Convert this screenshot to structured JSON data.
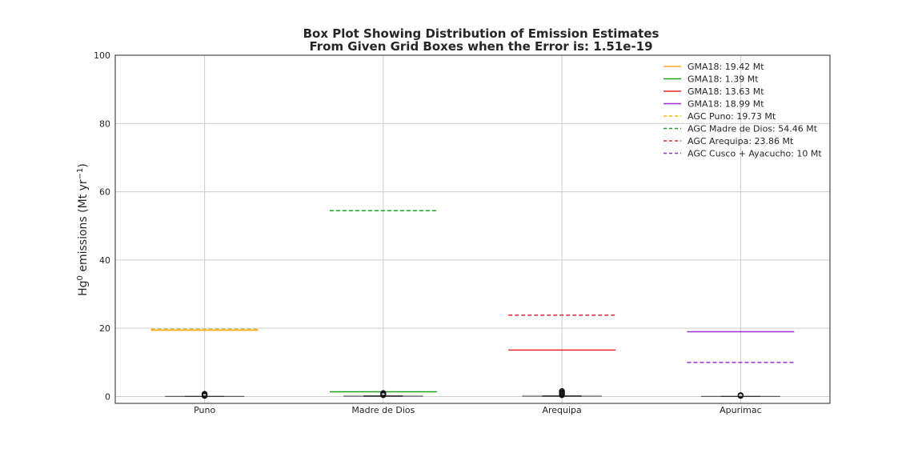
{
  "chart_data": {
    "type": "box",
    "title": "Box Plot Showing Distribution of Emission Estimates",
    "subtitle": "From Given Grid Boxes when the Error is: 1.51e-19",
    "ylabel": {
      "base": "Hg",
      "sup": "0",
      "rest": " emissions (Mt yr",
      "unit_sup": "−1",
      "close": ")"
    },
    "xlabel": "",
    "ylim": [
      -2,
      100
    ],
    "yticks": [
      0,
      20,
      40,
      60,
      80,
      100
    ],
    "grid": true,
    "legend_position": "upper-right",
    "categories": [
      "Puno",
      "Madre de Dios",
      "Arequipa",
      "Apurimac"
    ],
    "boxes": [
      {
        "category": "Puno",
        "median": 0.05,
        "q1": 0,
        "q3": 0.1,
        "whisker_low": 0,
        "whisker_high": 0.1,
        "outliers": [
          0.2,
          0.4,
          0.6,
          0.8
        ]
      },
      {
        "category": "Madre de Dios",
        "median": 0.1,
        "q1": 0,
        "q3": 0.3,
        "whisker_low": 0,
        "whisker_high": 0.3,
        "outliers": [
          0.4,
          0.6,
          0.8,
          1.0
        ]
      },
      {
        "category": "Arequipa",
        "median": 0.1,
        "q1": 0,
        "q3": 0.3,
        "whisker_low": 0,
        "whisker_high": 0.3,
        "outliers": [
          0.4,
          0.7,
          1.0,
          1.3,
          1.6
        ]
      },
      {
        "category": "Apurimac",
        "median": 0.05,
        "q1": 0,
        "q3": 0.1,
        "whisker_low": 0,
        "whisker_high": 0.1,
        "outliers": [
          0.2,
          0.4
        ]
      }
    ],
    "reference_lines": [
      {
        "label": "GMA18: 19.42 Mt",
        "category": "Puno",
        "value": 19.42,
        "style": "solid",
        "color": "#ffa726"
      },
      {
        "label": "GMA18: 1.39 Mt",
        "category": "Madre de Dios",
        "value": 1.39,
        "style": "solid",
        "color": "#1f9e1f"
      },
      {
        "label": "GMA18: 13.63 Mt",
        "category": "Arequipa",
        "value": 13.63,
        "style": "solid",
        "color": "#e8262a"
      },
      {
        "label": "GMA18: 18.99 Mt",
        "category": "Apurimac",
        "value": 18.99,
        "style": "solid",
        "color": "#9933cc"
      },
      {
        "label": "AGC Puno: 19.73 Mt",
        "category": "Puno",
        "value": 19.73,
        "style": "dashed",
        "color": "#ffb300"
      },
      {
        "label": "AGC Madre de Dios: 54.46 Mt",
        "category": "Madre de Dios",
        "value": 54.46,
        "style": "dashed",
        "color": "#1f9e1f"
      },
      {
        "label": "AGC Arequipa: 23.86 Mt",
        "category": "Arequipa",
        "value": 23.86,
        "style": "dashed",
        "color": "#e8262a"
      },
      {
        "label": "AGC Cusco + Ayacucho: 10 Mt",
        "category": "Apurimac",
        "value": 10,
        "style": "dashed",
        "color": "#9933cc"
      }
    ]
  }
}
